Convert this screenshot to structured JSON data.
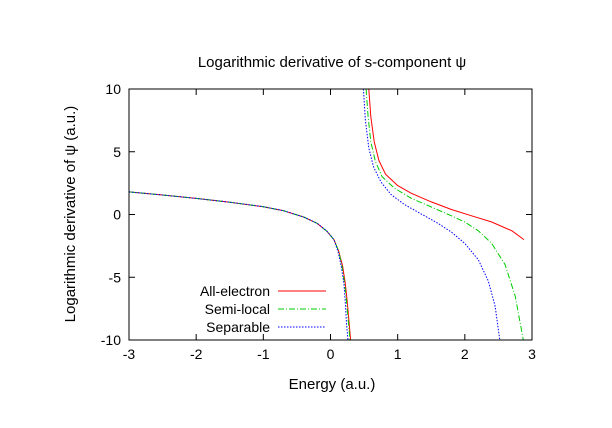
{
  "chart_data": {
    "type": "line",
    "title": "Logarithmic derivative of s-component ψ",
    "xlabel": "Energy (a.u.)",
    "ylabel": "Logarithmic derivative of ψ (a.u.)",
    "xlim": [
      -3,
      3
    ],
    "ylim": [
      -10,
      10
    ],
    "xticks": [
      -3,
      -2,
      -1,
      0,
      1,
      2,
      3
    ],
    "yticks": [
      -10,
      -5,
      0,
      5,
      10
    ],
    "xtick_labels": [
      "-3",
      "-2",
      "-1",
      "0",
      "1",
      "2",
      "3"
    ],
    "ytick_labels": [
      "-10",
      "-5",
      "0",
      "5",
      "10"
    ],
    "grid": false,
    "legend_position": "bottom-left",
    "series": [
      {
        "name": "All-electron",
        "color": "#ff0000",
        "dash": "solid",
        "segments": [
          [
            [
              -3.0,
              1.8
            ],
            [
              -2.5,
              1.55
            ],
            [
              -2.0,
              1.28
            ],
            [
              -1.5,
              0.98
            ],
            [
              -1.0,
              0.62
            ],
            [
              -0.7,
              0.3
            ],
            [
              -0.4,
              -0.2
            ],
            [
              -0.2,
              -0.7
            ],
            [
              -0.05,
              -1.35
            ],
            [
              0.05,
              -2.0
            ],
            [
              0.12,
              -2.9
            ],
            [
              0.18,
              -4.1
            ],
            [
              0.22,
              -5.5
            ],
            [
              0.25,
              -7.0
            ],
            [
              0.28,
              -8.8
            ],
            [
              0.3,
              -10.0
            ]
          ],
          [
            [
              0.57,
              10.0
            ],
            [
              0.6,
              7.8
            ],
            [
              0.65,
              5.8
            ],
            [
              0.72,
              4.3
            ],
            [
              0.82,
              3.2
            ],
            [
              1.0,
              2.3
            ],
            [
              1.2,
              1.7
            ],
            [
              1.5,
              1.0
            ],
            [
              1.8,
              0.4
            ],
            [
              2.1,
              -0.1
            ],
            [
              2.4,
              -0.6
            ],
            [
              2.7,
              -1.3
            ],
            [
              2.88,
              -2.0
            ]
          ]
        ]
      },
      {
        "name": "Semi-local",
        "color": "#00cc00",
        "dash": "dash-dot",
        "segments": [
          [
            [
              -3.0,
              1.8
            ],
            [
              -2.5,
              1.55
            ],
            [
              -2.0,
              1.28
            ],
            [
              -1.5,
              0.98
            ],
            [
              -1.0,
              0.62
            ],
            [
              -0.7,
              0.3
            ],
            [
              -0.4,
              -0.2
            ],
            [
              -0.2,
              -0.7
            ],
            [
              -0.05,
              -1.35
            ],
            [
              0.05,
              -2.0
            ],
            [
              0.12,
              -2.9
            ],
            [
              0.17,
              -4.1
            ],
            [
              0.21,
              -5.5
            ],
            [
              0.24,
              -7.0
            ],
            [
              0.27,
              -8.8
            ],
            [
              0.29,
              -10.0
            ]
          ],
          [
            [
              0.53,
              10.0
            ],
            [
              0.56,
              7.8
            ],
            [
              0.6,
              5.8
            ],
            [
              0.67,
              4.2
            ],
            [
              0.77,
              3.0
            ],
            [
              0.95,
              2.1
            ],
            [
              1.2,
              1.3
            ],
            [
              1.5,
              0.6
            ],
            [
              1.8,
              -0.1
            ],
            [
              2.0,
              -0.6
            ],
            [
              2.2,
              -1.3
            ],
            [
              2.4,
              -2.3
            ],
            [
              2.6,
              -4.0
            ],
            [
              2.75,
              -6.5
            ],
            [
              2.87,
              -10.0
            ]
          ]
        ]
      },
      {
        "name": "Separable",
        "color": "#0000ff",
        "dash": "dotted",
        "segments": [
          [
            [
              -3.0,
              1.8
            ],
            [
              -2.5,
              1.55
            ],
            [
              -2.0,
              1.28
            ],
            [
              -1.5,
              0.98
            ],
            [
              -1.0,
              0.62
            ],
            [
              -0.7,
              0.3
            ],
            [
              -0.4,
              -0.2
            ],
            [
              -0.2,
              -0.7
            ],
            [
              -0.05,
              -1.35
            ],
            [
              0.05,
              -2.0
            ],
            [
              0.11,
              -2.9
            ],
            [
              0.16,
              -4.1
            ],
            [
              0.2,
              -5.5
            ],
            [
              0.22,
              -7.0
            ],
            [
              0.24,
              -8.8
            ],
            [
              0.26,
              -10.0
            ]
          ],
          [
            [
              0.49,
              10.0
            ],
            [
              0.52,
              7.5
            ],
            [
              0.57,
              5.3
            ],
            [
              0.64,
              3.8
            ],
            [
              0.75,
              2.6
            ],
            [
              0.9,
              1.6
            ],
            [
              1.1,
              0.8
            ],
            [
              1.4,
              -0.1
            ],
            [
              1.6,
              -0.7
            ],
            [
              1.8,
              -1.4
            ],
            [
              2.0,
              -2.3
            ],
            [
              2.2,
              -3.6
            ],
            [
              2.35,
              -5.3
            ],
            [
              2.45,
              -7.3
            ],
            [
              2.52,
              -10.0
            ]
          ]
        ]
      }
    ]
  }
}
